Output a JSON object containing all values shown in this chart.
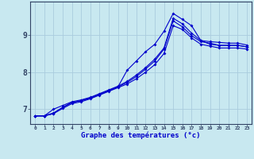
{
  "background_color": "#c8e8f0",
  "grid_color": "#aaccdd",
  "line_color": "#0000cc",
  "xlabel": "Graphe des températures (°c)",
  "xlabel_color": "#0000cc",
  "ylabel_ticks": [
    7,
    8,
    9
  ],
  "xlim": [
    -0.5,
    23.5
  ],
  "ylim": [
    6.6,
    9.9
  ],
  "xticks": [
    0,
    1,
    2,
    3,
    4,
    5,
    6,
    7,
    8,
    9,
    10,
    11,
    12,
    13,
    14,
    15,
    16,
    17,
    18,
    19,
    20,
    21,
    22,
    23
  ],
  "line1_x": [
    0,
    1,
    2,
    3,
    4,
    5,
    6,
    7,
    8,
    9,
    10,
    11,
    12,
    13,
    14,
    15,
    16,
    17,
    18,
    19,
    20,
    21,
    22,
    23
  ],
  "line1_y": [
    6.82,
    6.82,
    7.0,
    7.1,
    7.2,
    7.25,
    7.32,
    7.42,
    7.52,
    7.62,
    7.75,
    7.92,
    8.12,
    8.35,
    8.65,
    9.45,
    9.3,
    9.05,
    8.85,
    8.82,
    8.8,
    8.78,
    8.78,
    8.73
  ],
  "line2_x": [
    0,
    1,
    2,
    3,
    4,
    5,
    6,
    7,
    8,
    9,
    10,
    11,
    12,
    13,
    14,
    15,
    16,
    17,
    18,
    19,
    20,
    21,
    22,
    23
  ],
  "line2_y": [
    6.82,
    6.82,
    6.9,
    7.05,
    7.18,
    7.23,
    7.3,
    7.4,
    7.5,
    7.6,
    8.05,
    8.3,
    8.55,
    8.75,
    9.1,
    9.58,
    9.42,
    9.25,
    8.85,
    8.75,
    8.72,
    8.72,
    8.72,
    8.68
  ],
  "line3_x": [
    0,
    1,
    2,
    3,
    4,
    5,
    6,
    7,
    8,
    9,
    10,
    11,
    12,
    13,
    14,
    15,
    16,
    17,
    18,
    19,
    20,
    21,
    22,
    23
  ],
  "line3_y": [
    6.82,
    6.82,
    6.88,
    7.02,
    7.15,
    7.2,
    7.28,
    7.38,
    7.48,
    7.58,
    7.68,
    7.82,
    8.0,
    8.2,
    8.5,
    9.25,
    9.15,
    8.92,
    8.75,
    8.7,
    8.65,
    8.65,
    8.65,
    8.62
  ],
  "line4_x": [
    0,
    1,
    2,
    3,
    4,
    5,
    6,
    7,
    8,
    9,
    10,
    11,
    12,
    13,
    14,
    15,
    16,
    17,
    18,
    19,
    20,
    21,
    22,
    23
  ],
  "line4_y": [
    6.82,
    6.82,
    6.88,
    7.05,
    7.18,
    7.23,
    7.3,
    7.4,
    7.5,
    7.6,
    7.72,
    7.88,
    8.08,
    8.3,
    8.62,
    9.38,
    9.22,
    8.98,
    8.82,
    8.78,
    8.72,
    8.72,
    8.72,
    8.68
  ]
}
